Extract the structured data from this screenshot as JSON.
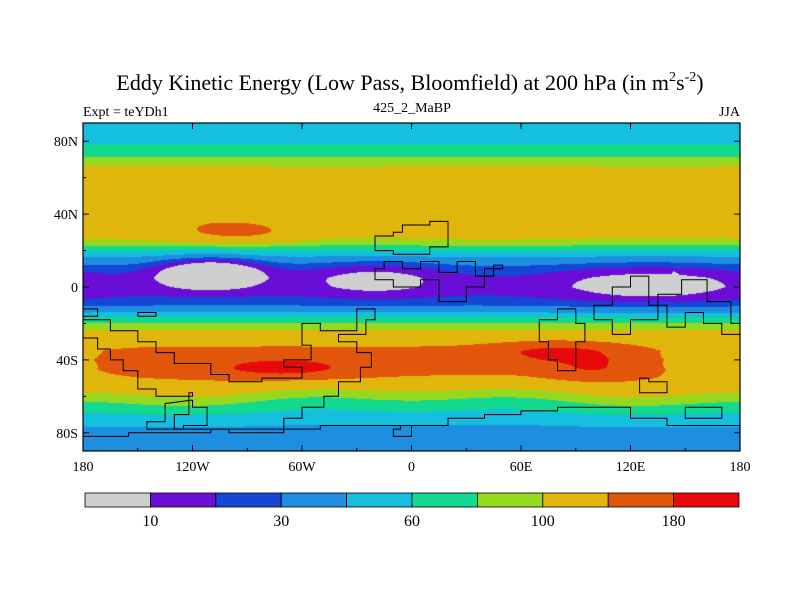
{
  "chart_data": {
    "type": "heatmap",
    "title": {
      "prefix": "Eddy Kinetic Energy (Low Pass, Bloomfield) at 200 hPa (in m",
      "sup1": "2",
      "mid": "s",
      "sup2": "-2",
      "suffix": ")"
    },
    "left_subtitle": "Expt = teYDh1",
    "center_subtitle": "425_2_MaBP",
    "right_subtitle": "JJA",
    "xlim": [
      -180,
      180
    ],
    "ylim": [
      -90,
      90
    ],
    "x_ticks": [
      {
        "value": -180,
        "label": "180"
      },
      {
        "value": -120,
        "label": "120W"
      },
      {
        "value": -60,
        "label": "60W"
      },
      {
        "value": 0,
        "label": "0"
      },
      {
        "value": 60,
        "label": "60E"
      },
      {
        "value": 120,
        "label": "120E"
      },
      {
        "value": 180,
        "label": "180"
      }
    ],
    "y_ticks": [
      {
        "value": 80,
        "label": "80N"
      },
      {
        "value": 40,
        "label": "40N"
      },
      {
        "value": 0,
        "label": "0"
      },
      {
        "value": -40,
        "label": "40S"
      },
      {
        "value": -80,
        "label": "80S"
      }
    ],
    "levels": [
      10,
      20,
      30,
      45,
      60,
      80,
      100,
      140,
      180
    ],
    "colorbar": {
      "colors": [
        "#cfcfcf",
        "#6a0dd6",
        "#1546d6",
        "#1e8fe0",
        "#14bfe0",
        "#12d890",
        "#96d81e",
        "#e0b50c",
        "#e2560c",
        "#e80a0a"
      ],
      "labels": [
        {
          "after_box": 1,
          "text": "10"
        },
        {
          "after_box": 3,
          "text": "30"
        },
        {
          "after_box": 5,
          "text": "60"
        },
        {
          "after_box": 7,
          "text": "100"
        },
        {
          "after_box": 9,
          "text": "180"
        }
      ]
    },
    "zonal_profile": [
      {
        "lat": 90,
        "value": 50
      },
      {
        "lat": 85,
        "value": 55
      },
      {
        "lat": 80,
        "value": 58
      },
      {
        "lat": 75,
        "value": 65
      },
      {
        "lat": 70,
        "value": 85
      },
      {
        "lat": 65,
        "value": 105
      },
      {
        "lat": 60,
        "value": 115
      },
      {
        "lat": 55,
        "value": 118
      },
      {
        "lat": 50,
        "value": 120
      },
      {
        "lat": 45,
        "value": 122
      },
      {
        "lat": 40,
        "value": 125
      },
      {
        "lat": 35,
        "value": 122
      },
      {
        "lat": 30,
        "value": 112
      },
      {
        "lat": 25,
        "value": 95
      },
      {
        "lat": 20,
        "value": 62
      },
      {
        "lat": 15,
        "value": 40
      },
      {
        "lat": 10,
        "value": 28
      },
      {
        "lat": 5,
        "value": 22
      },
      {
        "lat": 0,
        "value": 20
      },
      {
        "lat": -5,
        "value": 22
      },
      {
        "lat": -10,
        "value": 30
      },
      {
        "lat": -15,
        "value": 50
      },
      {
        "lat": -20,
        "value": 82
      },
      {
        "lat": -25,
        "value": 108
      },
      {
        "lat": -30,
        "value": 128
      },
      {
        "lat": -35,
        "value": 150
      },
      {
        "lat": -40,
        "value": 158
      },
      {
        "lat": -45,
        "value": 152
      },
      {
        "lat": -50,
        "value": 140
      },
      {
        "lat": -55,
        "value": 118
      },
      {
        "lat": -60,
        "value": 98
      },
      {
        "lat": -65,
        "value": 78
      },
      {
        "lat": -70,
        "value": 60
      },
      {
        "lat": -75,
        "value": 48
      },
      {
        "lat": -80,
        "value": 40
      },
      {
        "lat": -85,
        "value": 35
      },
      {
        "lat": -90,
        "value": 32
      }
    ],
    "anomalies": [
      {
        "lon": -95,
        "lat": 30,
        "rlon": 22,
        "rlat": 4,
        "amp": 40
      },
      {
        "lon": -110,
        "lat": 8,
        "rlon": 20,
        "rlat": 6,
        "amp": -40
      },
      {
        "lon": -20,
        "lat": 5,
        "rlon": 28,
        "rlat": 7,
        "amp": -18
      },
      {
        "lon": 130,
        "lat": 2,
        "rlon": 40,
        "rlat": 8,
        "amp": -18
      },
      {
        "lon": -70,
        "lat": -45,
        "rlon": 28,
        "rlat": 4,
        "amp": 45
      },
      {
        "lon": 80,
        "lat": -35,
        "rlon": 25,
        "rlat": 4,
        "amp": 40
      },
      {
        "lon": 100,
        "lat": -45,
        "rlon": 18,
        "rlat": 5,
        "amp": 30
      },
      {
        "lon": 160,
        "lat": -40,
        "rlon": 25,
        "rlat": 6,
        "amp": -30
      },
      {
        "lon": 0,
        "lat": -60,
        "rlon": 60,
        "rlat": 8,
        "amp": -15
      }
    ],
    "spots": [
      {
        "lon": -18,
        "lat": 2
      },
      {
        "lon": 128,
        "lat": 3
      },
      {
        "lon": 144,
        "lat": 6
      }
    ],
    "continents": [
      [
        [
          -15,
          14
        ],
        [
          -5,
          14
        ],
        [
          -5,
          10
        ],
        [
          5,
          10
        ],
        [
          5,
          14
        ],
        [
          15,
          14
        ],
        [
          15,
          8
        ],
        [
          25,
          8
        ],
        [
          25,
          14
        ],
        [
          35,
          14
        ],
        [
          35,
          6
        ],
        [
          45,
          6
        ],
        [
          45,
          12
        ],
        [
          50,
          12
        ],
        [
          50,
          10
        ],
        [
          40,
          10
        ],
        [
          40,
          0
        ],
        [
          30,
          0
        ],
        [
          30,
          -8
        ],
        [
          15,
          -8
        ],
        [
          15,
          4
        ],
        [
          5,
          4
        ],
        [
          5,
          0
        ],
        [
          -10,
          0
        ],
        [
          -10,
          4
        ],
        [
          -20,
          4
        ],
        [
          -20,
          10
        ],
        [
          -15,
          10
        ],
        [
          -15,
          14
        ]
      ],
      [
        [
          -20,
          20
        ],
        [
          -20,
          28
        ],
        [
          -10,
          28
        ],
        [
          -10,
          30
        ],
        [
          -5,
          30
        ],
        [
          -5,
          34
        ],
        [
          10,
          34
        ],
        [
          10,
          36
        ],
        [
          20,
          36
        ],
        [
          20,
          22
        ],
        [
          10,
          22
        ],
        [
          10,
          18
        ],
        [
          -10,
          18
        ],
        [
          -10,
          20
        ],
        [
          -20,
          20
        ]
      ],
      [
        [
          90,
          -12
        ],
        [
          80,
          -12
        ],
        [
          80,
          -18
        ],
        [
          70,
          -18
        ],
        [
          70,
          -30
        ],
        [
          75,
          -30
        ],
        [
          75,
          -40
        ],
        [
          80,
          -40
        ],
        [
          80,
          -46
        ],
        [
          90,
          -46
        ],
        [
          90,
          -30
        ],
        [
          95,
          -30
        ],
        [
          95,
          -20
        ],
        [
          90,
          -20
        ],
        [
          90,
          -12
        ]
      ],
      [
        [
          100,
          -18
        ],
        [
          100,
          -10
        ],
        [
          110,
          -10
        ],
        [
          110,
          0
        ],
        [
          120,
          0
        ],
        [
          120,
          6
        ],
        [
          130,
          6
        ],
        [
          130,
          -10
        ],
        [
          140,
          -10
        ],
        [
          140,
          -22
        ],
        [
          150,
          -22
        ],
        [
          150,
          -14
        ],
        [
          160,
          -14
        ],
        [
          160,
          -20
        ],
        [
          170,
          -20
        ],
        [
          170,
          -26
        ],
        [
          180,
          -26
        ],
        [
          180,
          -20
        ],
        [
          175,
          -20
        ],
        [
          175,
          -8
        ],
        [
          162,
          -8
        ],
        [
          162,
          4
        ],
        [
          148,
          4
        ],
        [
          148,
          -4
        ],
        [
          135,
          -4
        ],
        [
          135,
          -18
        ],
        [
          120,
          -18
        ],
        [
          120,
          -26
        ],
        [
          110,
          -26
        ],
        [
          110,
          -18
        ],
        [
          100,
          -18
        ]
      ],
      [
        [
          -180,
          -12
        ],
        [
          -172,
          -12
        ],
        [
          -172,
          -16
        ],
        [
          -180,
          -16
        ],
        [
          -180,
          -12
        ]
      ],
      [
        [
          -150,
          -16
        ],
        [
          -140,
          -16
        ],
        [
          -140,
          -14
        ],
        [
          -150,
          -14
        ],
        [
          -150,
          -16
        ]
      ],
      [
        [
          -180,
          -18
        ],
        [
          -180,
          -28
        ],
        [
          -172,
          -28
        ],
        [
          -172,
          -34
        ],
        [
          -165,
          -34
        ],
        [
          -165,
          -40
        ],
        [
          -158,
          -40
        ],
        [
          -158,
          -46
        ],
        [
          -150,
          -46
        ],
        [
          -150,
          -56
        ],
        [
          -140,
          -56
        ],
        [
          -140,
          -60
        ],
        [
          -120,
          -60
        ],
        [
          -120,
          -58
        ],
        [
          -122,
          -58
        ],
        [
          -122,
          -70
        ],
        [
          -130,
          -70
        ],
        [
          -130,
          -78
        ],
        [
          -100,
          -78
        ],
        [
          -100,
          -80
        ],
        [
          -70,
          -80
        ],
        [
          -70,
          -72
        ],
        [
          -60,
          -72
        ],
        [
          -60,
          -66
        ],
        [
          -48,
          -66
        ],
        [
          -48,
          -60
        ],
        [
          -40,
          -60
        ],
        [
          -40,
          -52
        ],
        [
          -28,
          -52
        ],
        [
          -28,
          -44
        ],
        [
          -22,
          -44
        ],
        [
          -22,
          -36
        ],
        [
          -30,
          -36
        ],
        [
          -30,
          -30
        ],
        [
          -40,
          -30
        ],
        [
          -40,
          -26
        ],
        [
          -25,
          -26
        ],
        [
          -25,
          -18
        ],
        [
          -20,
          -18
        ],
        [
          -20,
          -12
        ],
        [
          -30,
          -12
        ],
        [
          -30,
          -24
        ],
        [
          -50,
          -24
        ],
        [
          -50,
          -20
        ],
        [
          -60,
          -20
        ],
        [
          -60,
          -32
        ],
        [
          -55,
          -32
        ],
        [
          -55,
          -40
        ],
        [
          -70,
          -40
        ],
        [
          -70,
          -44
        ],
        [
          -60,
          -44
        ],
        [
          -60,
          -50
        ],
        [
          -82,
          -50
        ],
        [
          -82,
          -52
        ],
        [
          -100,
          -52
        ],
        [
          -100,
          -48
        ],
        [
          -110,
          -48
        ],
        [
          -110,
          -42
        ],
        [
          -130,
          -42
        ],
        [
          -130,
          -36
        ],
        [
          -140,
          -36
        ],
        [
          -140,
          -30
        ],
        [
          -150,
          -30
        ],
        [
          -150,
          -24
        ],
        [
          -165,
          -24
        ],
        [
          -165,
          -18
        ],
        [
          -180,
          -18
        ]
      ],
      [
        [
          -120,
          -62
        ],
        [
          -120,
          -66
        ],
        [
          -112,
          -66
        ],
        [
          -112,
          -76
        ],
        [
          -125,
          -76
        ],
        [
          -125,
          -78
        ],
        [
          -145,
          -78
        ],
        [
          -145,
          -74
        ],
        [
          -135,
          -74
        ],
        [
          -135,
          -64
        ],
        [
          -120,
          -62
        ]
      ],
      [
        [
          -180,
          -90
        ],
        [
          -180,
          -82
        ],
        [
          -155,
          -82
        ],
        [
          -155,
          -80
        ],
        [
          -110,
          -80
        ],
        [
          -110,
          -78
        ],
        [
          -50,
          -78
        ],
        [
          -50,
          -76
        ],
        [
          0,
          -76
        ],
        [
          0,
          -82
        ],
        [
          -10,
          -82
        ],
        [
          -10,
          -78
        ],
        [
          -6,
          -78
        ],
        [
          -6,
          -76
        ],
        [
          20,
          -76
        ],
        [
          20,
          -72
        ],
        [
          40,
          -72
        ],
        [
          40,
          -70
        ],
        [
          60,
          -70
        ],
        [
          60,
          -68
        ],
        [
          80,
          -68
        ],
        [
          80,
          -66
        ],
        [
          120,
          -66
        ],
        [
          120,
          -72
        ],
        [
          140,
          -72
        ],
        [
          140,
          -76
        ],
        [
          180,
          -76
        ],
        [
          180,
          -90
        ],
        [
          -180,
          -90
        ]
      ],
      [
        [
          125,
          -50
        ],
        [
          125,
          -58
        ],
        [
          140,
          -58
        ],
        [
          140,
          -52
        ],
        [
          130,
          -52
        ],
        [
          130,
          -50
        ],
        [
          125,
          -50
        ]
      ],
      [
        [
          150,
          -66
        ],
        [
          150,
          -72
        ],
        [
          170,
          -72
        ],
        [
          170,
          -66
        ],
        [
          150,
          -66
        ]
      ]
    ]
  }
}
